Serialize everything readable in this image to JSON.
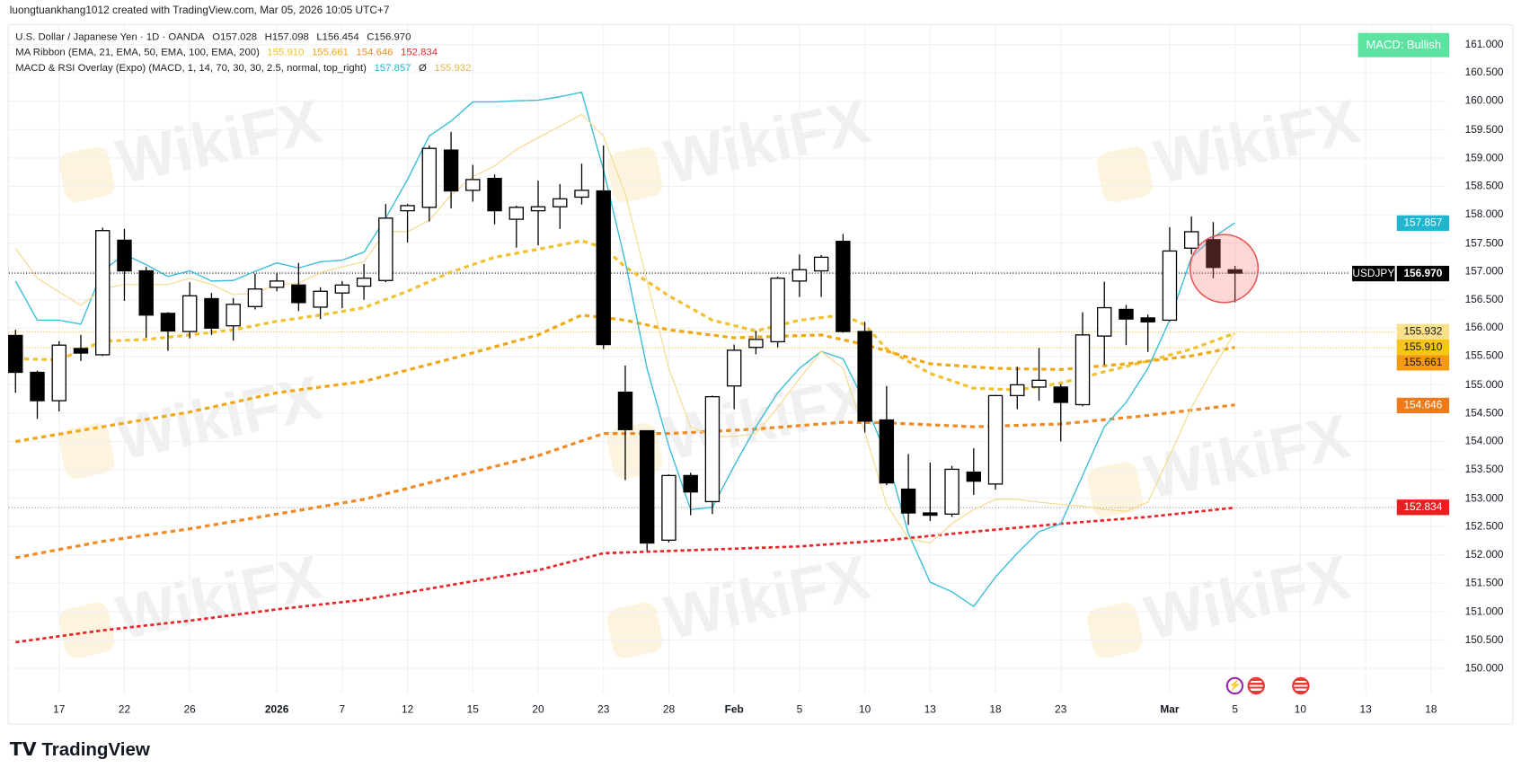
{
  "credit": "luongtuankhang1012 created with TradingView.com, Mar 05, 2026 10:05 UTC+7",
  "legend": {
    "symbol": {
      "title": "U.S. Dollar / Japanese Yen · 1D · OANDA",
      "open": "O157.028",
      "high": "H157.098",
      "low": "L156.454",
      "close": "C156.970"
    },
    "ma_ribbon": {
      "title": "MA Ribbon (EMA, 21, EMA, 50, EMA, 100, EMA, 200)",
      "values": [
        "155.910",
        "155.661",
        "154.646",
        "152.834"
      ]
    },
    "macd_rsi": {
      "title": "MACD & RSI Overlay (Expo) (MACD, 1, 14, 70, 30, 30, 2.5, normal, top_right)",
      "value1": "157.857",
      "sep": "Ø",
      "value2": "155.932"
    }
  },
  "badge": "MACD: Bullish",
  "colors": {
    "ema21": "#f2c12e",
    "ema50": "#f0a818",
    "ema100": "#f08a24",
    "ema200": "#e8262a",
    "cyan": "#3bbfd8",
    "lightyellow": "#f6d98e",
    "badge": "#5de3a0"
  },
  "price_axis": [
    "161.000",
    "160.500",
    "160.000",
    "159.500",
    "159.000",
    "158.500",
    "158.000",
    "157.500",
    "157.000",
    "156.500",
    "156.000",
    "155.500",
    "155.000",
    "154.500",
    "154.000",
    "153.500",
    "153.000",
    "152.500",
    "152.000",
    "151.500",
    "151.000",
    "150.500",
    "150.000"
  ],
  "price_tags": {
    "cyan": "157.857",
    "symbol": "USDJPY",
    "last": "156.970",
    "overlay": "155.932",
    "ema21": "155.910",
    "ema50": "155.661",
    "ema100": "154.646",
    "ema200": "152.834"
  },
  "time_axis": [
    {
      "label": "17",
      "bar": 2
    },
    {
      "label": "22",
      "bar": 5
    },
    {
      "label": "26",
      "bar": 8
    },
    {
      "label": "2026",
      "bar": 12
    },
    {
      "label": "7",
      "bar": 15
    },
    {
      "label": "12",
      "bar": 18
    },
    {
      "label": "15",
      "bar": 21
    },
    {
      "label": "20",
      "bar": 24
    },
    {
      "label": "23",
      "bar": 27
    },
    {
      "label": "28",
      "bar": 30
    },
    {
      "label": "Feb",
      "bar": 33
    },
    {
      "label": "5",
      "bar": 36
    },
    {
      "label": "10",
      "bar": 39
    },
    {
      "label": "13",
      "bar": 42
    },
    {
      "label": "18",
      "bar": 45
    },
    {
      "label": "23",
      "bar": 48
    },
    {
      "label": "Mar",
      "bar": 53
    },
    {
      "label": "5",
      "bar": 56
    },
    {
      "label": "10",
      "bar": 59
    },
    {
      "label": "13",
      "bar": 62
    },
    {
      "label": "18",
      "bar": 65
    }
  ],
  "brand": "TradingView",
  "watermark": "WikiFX",
  "chart_data": {
    "type": "candlestick",
    "symbol": "USDJPY",
    "ylim": [
      150,
      161
    ],
    "ohlc": [
      [
        155.87,
        155.97,
        154.86,
        155.22
      ],
      [
        155.22,
        155.25,
        154.4,
        154.72
      ],
      [
        154.72,
        155.77,
        154.53,
        155.7
      ],
      [
        155.64,
        155.88,
        155.42,
        155.56
      ],
      [
        155.53,
        157.77,
        155.51,
        157.72
      ],
      [
        157.55,
        157.75,
        156.48,
        157.01
      ],
      [
        157.01,
        157.08,
        155.83,
        156.23
      ],
      [
        156.26,
        156.28,
        155.6,
        155.95
      ],
      [
        155.94,
        156.81,
        155.82,
        156.57
      ],
      [
        156.52,
        156.62,
        155.88,
        156.0
      ],
      [
        156.04,
        156.53,
        155.78,
        156.42
      ],
      [
        156.38,
        156.96,
        156.33,
        156.69
      ],
      [
        156.72,
        156.98,
        156.65,
        156.83
      ],
      [
        156.76,
        157.15,
        156.3,
        156.45
      ],
      [
        156.37,
        156.72,
        156.16,
        156.65
      ],
      [
        156.62,
        156.83,
        156.35,
        156.76
      ],
      [
        156.74,
        157.13,
        156.5,
        156.88
      ],
      [
        156.84,
        158.19,
        156.81,
        157.94
      ],
      [
        158.07,
        158.19,
        157.51,
        158.16
      ],
      [
        158.13,
        159.22,
        157.88,
        159.17
      ],
      [
        159.14,
        159.46,
        158.11,
        158.42
      ],
      [
        158.43,
        158.88,
        158.23,
        158.62
      ],
      [
        158.64,
        158.71,
        157.83,
        158.07
      ],
      [
        157.92,
        158.16,
        157.42,
        158.13
      ],
      [
        158.07,
        158.6,
        157.46,
        158.14
      ],
      [
        158.14,
        158.54,
        157.75,
        158.28
      ],
      [
        158.31,
        158.9,
        158.18,
        158.43
      ],
      [
        158.42,
        159.22,
        155.63,
        155.71
      ],
      [
        154.87,
        155.34,
        153.32,
        154.21
      ],
      [
        154.19,
        154.19,
        152.07,
        152.21
      ],
      [
        152.26,
        153.42,
        152.22,
        153.4
      ],
      [
        153.4,
        153.45,
        152.7,
        153.11
      ],
      [
        152.94,
        154.81,
        152.72,
        154.79
      ],
      [
        154.98,
        155.71,
        154.57,
        155.61
      ],
      [
        155.66,
        155.95,
        155.54,
        155.8
      ],
      [
        155.76,
        156.91,
        155.66,
        156.88
      ],
      [
        156.83,
        157.3,
        156.55,
        157.03
      ],
      [
        157.01,
        157.29,
        156.55,
        157.25
      ],
      [
        157.53,
        157.66,
        155.92,
        155.94
      ],
      [
        155.94,
        156.11,
        154.16,
        154.36
      ],
      [
        154.38,
        154.98,
        153.23,
        153.27
      ],
      [
        153.16,
        153.78,
        152.53,
        152.74
      ],
      [
        152.74,
        153.63,
        152.6,
        152.7
      ],
      [
        152.72,
        153.57,
        152.67,
        153.51
      ],
      [
        153.46,
        153.88,
        153.06,
        153.3
      ],
      [
        153.25,
        154.82,
        153.15,
        154.81
      ],
      [
        154.81,
        155.32,
        154.57,
        155.0
      ],
      [
        154.96,
        155.65,
        154.72,
        155.08
      ],
      [
        154.96,
        155.01,
        154.0,
        154.69
      ],
      [
        154.65,
        156.28,
        154.62,
        155.88
      ],
      [
        155.86,
        156.82,
        155.35,
        156.36
      ],
      [
        156.33,
        156.41,
        155.7,
        156.16
      ],
      [
        156.18,
        156.24,
        155.58,
        156.11
      ],
      [
        156.14,
        157.78,
        156.12,
        157.36
      ],
      [
        157.41,
        157.97,
        157.3,
        157.7
      ],
      [
        157.56,
        157.87,
        156.88,
        157.07
      ],
      [
        157.028,
        157.098,
        156.454,
        156.97
      ]
    ],
    "series": [
      {
        "name": "EMA 21",
        "style": "dashed",
        "points": [
          [
            0,
            155.46
          ],
          [
            2,
            155.44
          ],
          [
            4,
            155.77
          ],
          [
            6,
            155.8
          ],
          [
            8,
            155.88
          ],
          [
            10,
            155.97
          ],
          [
            12,
            156.12
          ],
          [
            14,
            156.23
          ],
          [
            16,
            156.36
          ],
          [
            18,
            156.65
          ],
          [
            20,
            156.99
          ],
          [
            22,
            157.25
          ],
          [
            24,
            157.39
          ],
          [
            26,
            157.54
          ],
          [
            27,
            157.42
          ],
          [
            28,
            157.08
          ],
          [
            30,
            156.57
          ],
          [
            32,
            156.14
          ],
          [
            34,
            155.95
          ],
          [
            36,
            156.14
          ],
          [
            38,
            156.23
          ],
          [
            39,
            156.06
          ],
          [
            40,
            155.63
          ],
          [
            42,
            155.2
          ],
          [
            44,
            154.94
          ],
          [
            46,
            154.91
          ],
          [
            48,
            155.03
          ],
          [
            50,
            155.23
          ],
          [
            52,
            155.42
          ],
          [
            54,
            155.63
          ],
          [
            56,
            155.91
          ]
        ]
      },
      {
        "name": "EMA 50",
        "style": "dashed",
        "points": [
          [
            0,
            154.0
          ],
          [
            4,
            154.26
          ],
          [
            8,
            154.52
          ],
          [
            12,
            154.86
          ],
          [
            16,
            155.06
          ],
          [
            20,
            155.46
          ],
          [
            24,
            155.88
          ],
          [
            26,
            156.23
          ],
          [
            28,
            156.14
          ],
          [
            30,
            155.97
          ],
          [
            33,
            155.83
          ],
          [
            37,
            155.88
          ],
          [
            39,
            155.71
          ],
          [
            42,
            155.37
          ],
          [
            45,
            155.29
          ],
          [
            48,
            155.27
          ],
          [
            51,
            155.37
          ],
          [
            54,
            155.51
          ],
          [
            56,
            155.661
          ]
        ]
      },
      {
        "name": "EMA 100",
        "style": "dashed",
        "points": [
          [
            0,
            151.95
          ],
          [
            4,
            152.24
          ],
          [
            8,
            152.46
          ],
          [
            12,
            152.72
          ],
          [
            16,
            152.98
          ],
          [
            20,
            153.37
          ],
          [
            24,
            153.75
          ],
          [
            27,
            154.14
          ],
          [
            30,
            154.14
          ],
          [
            34,
            154.22
          ],
          [
            38,
            154.34
          ],
          [
            40,
            154.33
          ],
          [
            44,
            154.26
          ],
          [
            48,
            154.31
          ],
          [
            52,
            154.46
          ],
          [
            56,
            154.646
          ]
        ]
      },
      {
        "name": "EMA 200",
        "style": "dashed",
        "points": [
          [
            0,
            150.46
          ],
          [
            4,
            150.67
          ],
          [
            8,
            150.84
          ],
          [
            12,
            151.04
          ],
          [
            16,
            151.21
          ],
          [
            20,
            151.47
          ],
          [
            24,
            151.73
          ],
          [
            27,
            152.03
          ],
          [
            30,
            152.07
          ],
          [
            36,
            152.15
          ],
          [
            40,
            152.26
          ],
          [
            44,
            152.41
          ],
          [
            48,
            152.55
          ],
          [
            52,
            152.67
          ],
          [
            56,
            152.834
          ]
        ]
      },
      {
        "name": "MACD overlay",
        "style": "solid",
        "values": [
          156.83,
          156.14,
          156.14,
          156.07,
          157.01,
          157.3,
          157.12,
          156.91,
          157.01,
          156.83,
          156.84,
          157.0,
          157.15,
          157.06,
          157.17,
          157.2,
          157.34,
          157.94,
          158.62,
          159.39,
          159.65,
          159.99,
          159.99,
          160.01,
          160.02,
          160.08,
          160.16,
          158.79,
          157.17,
          155.29,
          153.92,
          152.8,
          152.84,
          153.57,
          154.26,
          154.86,
          155.29,
          155.59,
          155.46,
          154.69,
          153.75,
          152.38,
          151.52,
          151.35,
          151.09,
          151.61,
          152.03,
          152.41,
          152.55,
          153.4,
          154.26,
          154.69,
          155.29,
          156.14,
          157.25,
          157.6,
          157.857
        ]
      },
      {
        "name": "RSI overlay",
        "style": "solid",
        "values": [
          157.41,
          156.88,
          156.64,
          156.4,
          156.69,
          156.77,
          156.77,
          156.77,
          156.88,
          156.77,
          156.59,
          156.62,
          156.77,
          156.79,
          156.98,
          157.08,
          157.17,
          157.71,
          157.7,
          157.9,
          158.35,
          158.67,
          158.86,
          159.15,
          159.36,
          159.56,
          159.77,
          159.39,
          158.37,
          156.83,
          155.29,
          154.26,
          154.09,
          154.09,
          154.14,
          154.6,
          155.11,
          155.59,
          155.29,
          154.17,
          152.89,
          152.29,
          152.21,
          152.55,
          152.8,
          152.98,
          152.98,
          152.93,
          152.89,
          152.86,
          152.8,
          152.77,
          152.93,
          153.75,
          154.6,
          155.29,
          155.932
        ]
      }
    ],
    "highlight": {
      "bar": 55.5,
      "price": 157.05
    }
  }
}
